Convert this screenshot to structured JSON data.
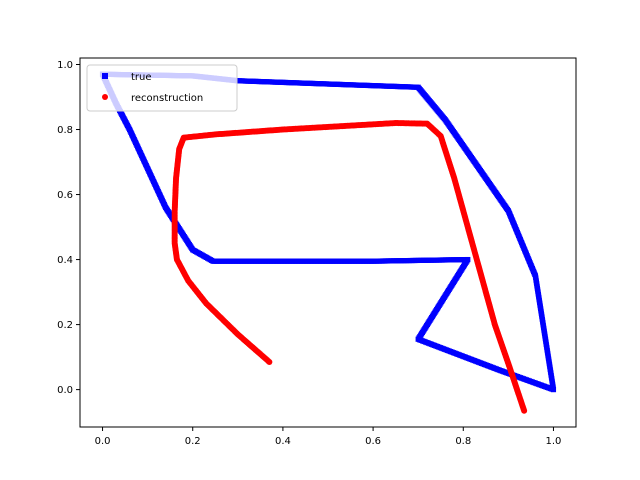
{
  "chart_data": {
    "type": "scatter",
    "title": "",
    "xlabel": "",
    "ylabel": "",
    "xlim": [
      -0.05,
      1.05
    ],
    "ylim": [
      -0.115,
      1.02
    ],
    "xticks": [
      0.0,
      0.2,
      0.4,
      0.6,
      0.8,
      1.0
    ],
    "yticks": [
      0.0,
      0.2,
      0.4,
      0.6,
      0.8,
      1.0
    ],
    "xtick_labels": [
      "0.0",
      "0.2",
      "0.4",
      "0.6",
      "0.8",
      "1.0"
    ],
    "ytick_labels": [
      "0.0",
      "0.2",
      "0.4",
      "0.6",
      "0.8",
      "1.0"
    ],
    "grid": false,
    "legend_position": "upper-left",
    "series": [
      {
        "name": "true",
        "color": "#0000ff",
        "marker": "square",
        "path": [
          [
            0.0,
            0.97
          ],
          [
            0.2,
            0.965
          ],
          [
            0.3,
            0.95
          ],
          [
            0.5,
            0.94
          ],
          [
            0.7,
            0.93
          ],
          [
            0.76,
            0.83
          ],
          [
            0.82,
            0.71
          ],
          [
            0.9,
            0.55
          ],
          [
            0.96,
            0.35
          ],
          [
            1.0,
            0.0
          ],
          [
            0.88,
            0.06
          ],
          [
            0.7,
            0.155
          ],
          [
            0.81,
            0.4
          ],
          [
            0.6,
            0.395
          ],
          [
            0.4,
            0.395
          ],
          [
            0.245,
            0.395
          ],
          [
            0.2,
            0.43
          ],
          [
            0.14,
            0.56
          ],
          [
            0.1,
            0.68
          ],
          [
            0.06,
            0.8
          ],
          [
            0.03,
            0.88
          ],
          [
            0.0,
            0.97
          ]
        ]
      },
      {
        "name": "reconstruction",
        "color": "#ff0000",
        "marker": "circle",
        "path": [
          [
            0.37,
            0.085
          ],
          [
            0.3,
            0.17
          ],
          [
            0.23,
            0.265
          ],
          [
            0.19,
            0.335
          ],
          [
            0.165,
            0.4
          ],
          [
            0.16,
            0.45
          ],
          [
            0.16,
            0.55
          ],
          [
            0.163,
            0.65
          ],
          [
            0.17,
            0.74
          ],
          [
            0.18,
            0.775
          ],
          [
            0.25,
            0.785
          ],
          [
            0.4,
            0.8
          ],
          [
            0.55,
            0.812
          ],
          [
            0.65,
            0.82
          ],
          [
            0.72,
            0.818
          ],
          [
            0.75,
            0.78
          ],
          [
            0.78,
            0.65
          ],
          [
            0.81,
            0.5
          ],
          [
            0.84,
            0.35
          ],
          [
            0.87,
            0.2
          ],
          [
            0.9,
            0.08
          ],
          [
            0.935,
            -0.065
          ]
        ]
      }
    ]
  }
}
